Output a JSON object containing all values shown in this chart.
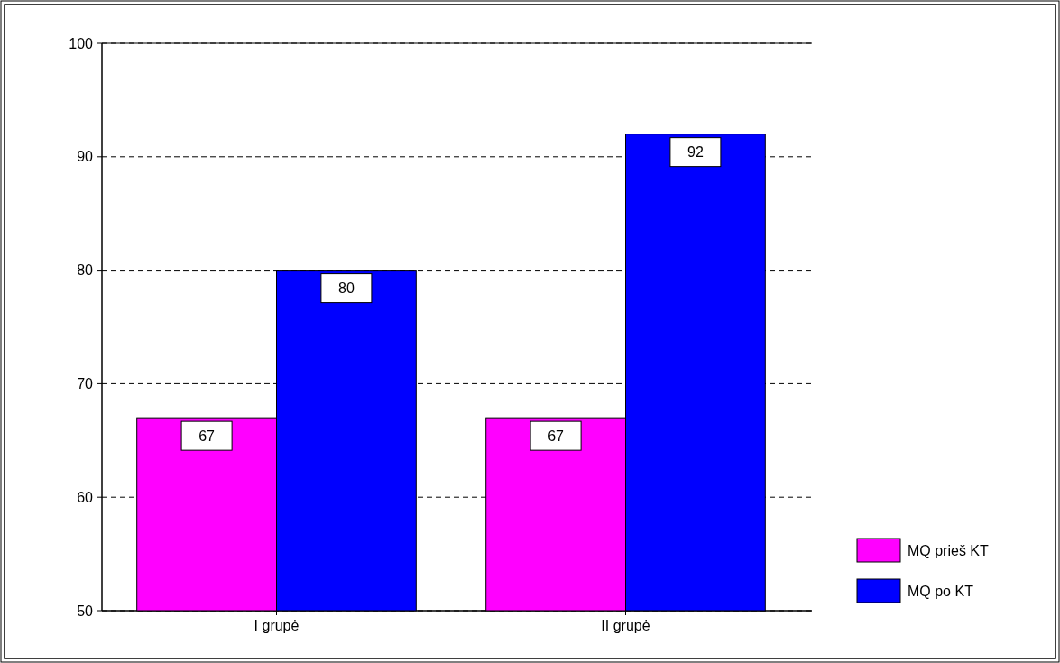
{
  "chart_data": {
    "type": "bar",
    "categories": [
      "I grupė",
      "II grupė"
    ],
    "series": [
      {
        "name": "MQ prieš KT",
        "color": "#ff00ff",
        "values": [
          67,
          67
        ]
      },
      {
        "name": "MQ po KT",
        "color": "#0000ff",
        "values": [
          80,
          92
        ]
      }
    ],
    "ylim": [
      50,
      100
    ],
    "yticks": [
      50,
      60,
      70,
      80,
      90,
      100
    ],
    "grid": "y",
    "legend": "bottom right",
    "data_labels": true
  }
}
